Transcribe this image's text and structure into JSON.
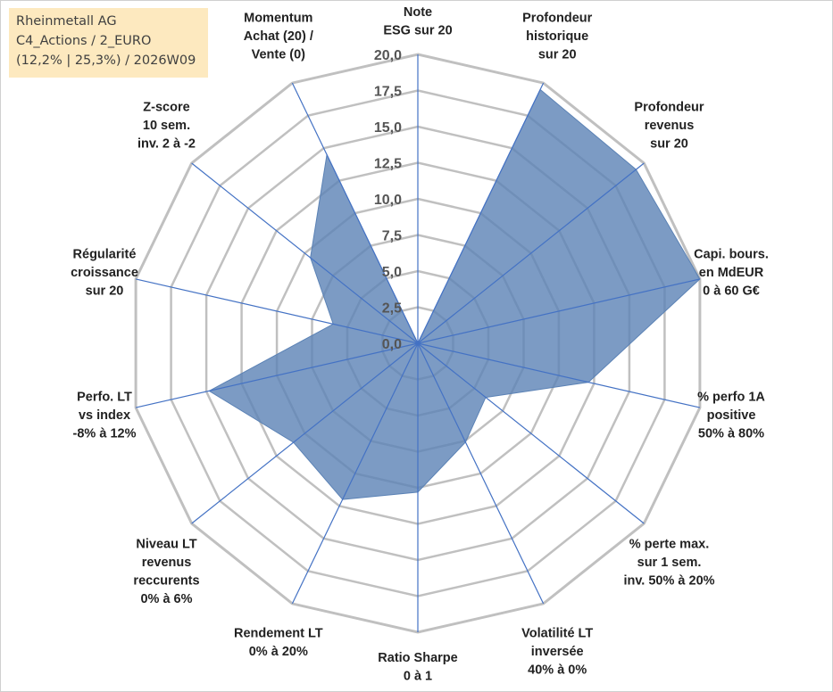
{
  "infobox": {
    "line1": "Rheinmetall AG",
    "line2": "C4_Actions / 2_EURO",
    "line3": "(12,2% | 25,3%) / 2026W09"
  },
  "colors": {
    "grid": "#c0c0c0",
    "spoke": "#4472c4",
    "fill": "#5b82b5",
    "fill_opacity": 0.8,
    "text": "#222222",
    "tick": "#555555",
    "infobox_bg": "#fde9bf"
  },
  "chart_data": {
    "type": "radar",
    "title": "",
    "rmin": 0,
    "rmax": 20,
    "ticks": [
      "0,0",
      "2,5",
      "5,0",
      "7,5",
      "10,0",
      "12,5",
      "15,0",
      "17,5",
      "20,0"
    ],
    "tick_values": [
      0,
      2.5,
      5,
      7.5,
      10,
      12.5,
      15,
      17.5,
      20
    ],
    "axes": [
      {
        "label": [
          "Note",
          "ESG sur 20"
        ],
        "value": 0
      },
      {
        "label": [
          "Profondeur",
          "historique",
          "sur 20"
        ],
        "value": 19.5
      },
      {
        "label": [
          "Profondeur",
          "revenus",
          "sur 20"
        ],
        "value": 19.3
      },
      {
        "label": [
          "Capi. bours.",
          "en MdEUR",
          "0 à 60 G€"
        ],
        "value": 20
      },
      {
        "label": [
          "% perfo 1A",
          "positive",
          "50% à 80%"
        ],
        "value": 12.1
      },
      {
        "label": [
          "% perte max.",
          "sur 1 sem.",
          "inv. 50% à 20%"
        ],
        "value": 6
      },
      {
        "label": [
          "Volatilité LT",
          "inversée",
          "40% à 0%"
        ],
        "value": 7.6
      },
      {
        "label": [
          "Ratio Sharpe",
          "0 à 1"
        ],
        "value": 10.3
      },
      {
        "label": [
          "Rendement LT",
          "0% à 20%"
        ],
        "value": 12
      },
      {
        "label": [
          "Niveau LT",
          "revenus",
          "reccurents",
          "0% à 6%"
        ],
        "value": 11
      },
      {
        "label": [
          "Perfo. LT",
          "vs index",
          "-8% à 12%"
        ],
        "value": 14.8
      },
      {
        "label": [
          "Régularité",
          "croissance",
          "sur 20"
        ],
        "value": 6
      },
      {
        "label": [
          "Z-score",
          "10 sem.",
          "inv. 2 à -2"
        ],
        "value": 9.5
      },
      {
        "label": [
          "Momentum",
          "Achat (20) /",
          "Vente (0)"
        ],
        "value": 14.5
      }
    ]
  }
}
